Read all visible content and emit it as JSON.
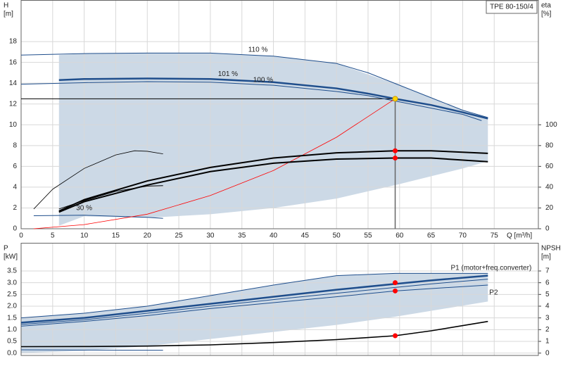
{
  "chart_data": [
    {
      "type": "line",
      "title": "TPE 80-150/4",
      "x_label": "Q [m³/h]",
      "y_label": "H",
      "y_unit": "[m]",
      "y2_label": "eta",
      "y2_unit": "[%]",
      "xlim": [
        0,
        82
      ],
      "xticks": [
        0,
        5,
        10,
        15,
        20,
        25,
        30,
        35,
        40,
        45,
        50,
        55,
        60,
        65,
        70,
        75
      ],
      "ylim": [
        0,
        22
      ],
      "yticks": [
        0,
        2,
        4,
        6,
        8,
        10,
        12,
        14,
        16,
        18
      ],
      "y2lim": [
        0,
        220
      ],
      "y2ticks": [
        0,
        20,
        40,
        60,
        80,
        100
      ],
      "grid": true,
      "area": {
        "color": "#ccd9e6",
        "x": [
          6,
          10,
          20,
          30,
          40,
          50,
          60,
          70,
          74
        ],
        "upper": [
          16.7,
          16.85,
          16.9,
          16.9,
          16.6,
          15.9,
          13.8,
          11.4,
          10.7
        ],
        "lower": [
          0.3,
          1.2,
          1.05,
          1.4,
          2.0,
          2.9,
          4.3,
          5.8,
          6.5
        ]
      },
      "operating_point": {
        "x": 59.3,
        "y": 12.5,
        "color": "#ffd700"
      },
      "series": [
        {
          "name": "110 %",
          "color": "#1f4e8c",
          "x": [
            0,
            10,
            20,
            30,
            40,
            50,
            55,
            60,
            65,
            70,
            74
          ],
          "values": [
            16.7,
            16.85,
            16.9,
            16.9,
            16.6,
            15.9,
            15.0,
            13.8,
            12.6,
            11.4,
            10.7
          ]
        },
        {
          "name": "101 %",
          "color": "#1f4e8c",
          "x": [
            6,
            10,
            20,
            30,
            40,
            50,
            55,
            59.3,
            65,
            70,
            74
          ],
          "values": [
            14.3,
            14.4,
            14.45,
            14.4,
            14.1,
            13.5,
            13.0,
            12.5,
            11.9,
            11.2,
            10.6
          ]
        },
        {
          "name": "100 %",
          "color": "#1f4e8c",
          "x": [
            0,
            10,
            20,
            30,
            40,
            50,
            55,
            60,
            65,
            70,
            73
          ],
          "values": [
            13.9,
            14.05,
            14.15,
            14.1,
            13.8,
            13.2,
            12.8,
            12.2,
            11.6,
            11.0,
            10.4
          ]
        },
        {
          "name": "30 %",
          "color": "#1f4e8c",
          "x": [
            2,
            10,
            20,
            22.5
          ],
          "values": [
            1.25,
            1.3,
            1.1,
            1.0
          ]
        },
        {
          "color": "#ff0000",
          "x": [
            2,
            10,
            20,
            30,
            40,
            50,
            59.3
          ],
          "values": [
            0,
            0.4,
            1.4,
            3.2,
            5.6,
            8.8,
            12.5
          ]
        },
        {
          "color": "#000000",
          "axis": "y2",
          "x": [
            6,
            10,
            20,
            30,
            40,
            50,
            59.3,
            65,
            74
          ],
          "values": [
            17,
            28,
            46,
            59,
            68,
            73,
            75,
            75,
            72.5
          ]
        },
        {
          "color": "#000000",
          "axis": "y2",
          "x": [
            6,
            10,
            20,
            30,
            40,
            50,
            59.3,
            65,
            74
          ],
          "values": [
            16,
            26,
            42,
            55,
            63,
            67,
            68,
            68,
            64.5
          ]
        },
        {
          "color": "#000000",
          "axis": "y2",
          "x": [
            2,
            5,
            10,
            15,
            18,
            20,
            22.5
          ],
          "values": [
            19,
            38,
            58,
            71,
            75,
            74.5,
            72
          ]
        },
        {
          "color": "#000000",
          "axis": "y2",
          "x": [
            6,
            10,
            15,
            20,
            22.5
          ],
          "values": [
            19,
            27,
            36,
            41,
            41.5
          ]
        }
      ],
      "markers": [
        {
          "x": 59.3,
          "y": 75,
          "axis": "y2",
          "color": "#ff0000"
        },
        {
          "x": 59.3,
          "y": 68,
          "axis": "y2",
          "color": "#ff0000"
        }
      ]
    },
    {
      "type": "line",
      "y_label": "P",
      "y_unit": "[kW]",
      "y2_label": "NPSH",
      "y2_unit": "[m]",
      "xlim": [
        0,
        82
      ],
      "xticks": [
        0,
        5,
        10,
        15,
        20,
        25,
        30,
        35,
        40,
        45,
        50,
        55,
        60,
        65,
        70,
        75
      ],
      "ylim": [
        -0.1,
        4.7
      ],
      "yticks": [
        {
          "value": 0,
          "label": "0.0"
        },
        {
          "value": 0.5,
          "label": "0.5"
        },
        {
          "value": 1,
          "label": "1.0"
        },
        {
          "value": 1.5,
          "label": "1.5"
        },
        {
          "value": 2,
          "label": "2.0"
        },
        {
          "value": 2.5,
          "label": "2.5"
        },
        {
          "value": 3,
          "label": "3.0"
        },
        {
          "value": 3.5,
          "label": "3.5"
        }
      ],
      "y2lim": [
        -0.2,
        9.4
      ],
      "y2ticks": [
        0,
        1,
        2,
        3,
        4,
        5,
        6,
        7
      ],
      "grid": true,
      "area": {
        "color": "#ccd9e6",
        "x": [
          0,
          10,
          20,
          30,
          40,
          50,
          59.3,
          65,
          74
        ],
        "upper": [
          1.5,
          1.7,
          2.0,
          2.45,
          2.9,
          3.3,
          3.4,
          3.4,
          3.4
        ],
        "lower": [
          0,
          0.1,
          0.3,
          0.6,
          0.9,
          1.2,
          1.55,
          1.8,
          2.2
        ]
      },
      "series": [
        {
          "name": "P1 (motor+freq.converter)",
          "color": "#1f4e8c",
          "x": [
            0,
            10,
            20,
            30,
            40,
            50,
            59.3,
            65,
            74
          ],
          "values": [
            1.3,
            1.5,
            1.8,
            2.1,
            2.4,
            2.7,
            2.95,
            3.1,
            3.3
          ]
        },
        {
          "name": "P2",
          "color": "#1f4e8c",
          "x": [
            0,
            10,
            20,
            30,
            40,
            50,
            59.3,
            65,
            74
          ],
          "values": [
            1.15,
            1.35,
            1.6,
            1.9,
            2.15,
            2.4,
            2.65,
            2.75,
            2.9
          ]
        },
        {
          "color": "#1f4e8c",
          "x": [
            0,
            10,
            20,
            30,
            40,
            50,
            59.3,
            65,
            74
          ],
          "values": [
            1.5,
            1.7,
            2.0,
            2.45,
            2.9,
            3.3,
            3.4,
            3.4,
            3.4
          ]
        },
        {
          "color": "#1f4e8c",
          "x": [
            0,
            10,
            20,
            30,
            40,
            50,
            59.3,
            65,
            74
          ],
          "values": [
            1.22,
            1.42,
            1.7,
            2.0,
            2.28,
            2.55,
            2.8,
            2.95,
            3.15
          ]
        },
        {
          "color": "#000000",
          "axis": "y2",
          "x": [
            0,
            10,
            20,
            30,
            40,
            50,
            59.3,
            65,
            74
          ],
          "values": [
            0.55,
            0.56,
            0.6,
            0.7,
            0.9,
            1.15,
            1.48,
            1.9,
            2.7
          ]
        },
        {
          "color": "#1f4e8c",
          "x": [
            0,
            10,
            22.5
          ],
          "values": [
            0.14,
            0.13,
            0.12
          ]
        }
      ],
      "markers": [
        {
          "x": 59.3,
          "y": 3.0,
          "color": "#ff0000"
        },
        {
          "x": 59.3,
          "y": 2.65,
          "color": "#ff0000"
        },
        {
          "x": 59.3,
          "y": 1.48,
          "axis": "y2",
          "color": "#ff0000"
        }
      ]
    }
  ]
}
